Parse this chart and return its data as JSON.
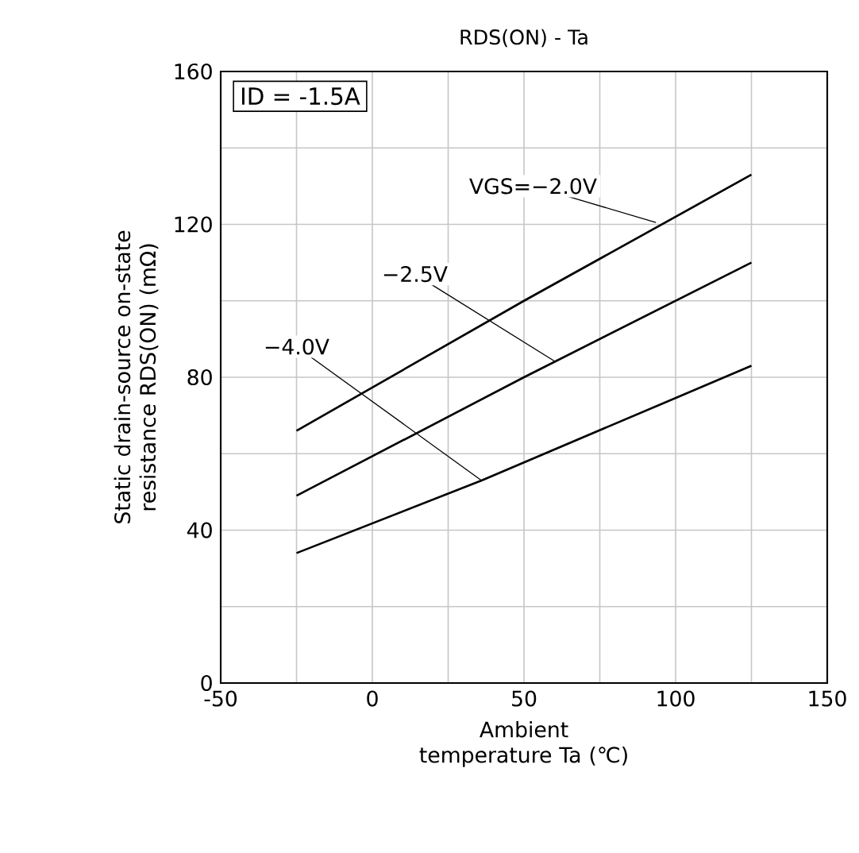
{
  "chart_data": {
    "type": "line",
    "title": "RDS(ON) - Ta",
    "xlabel": "Ambient temperature Ta (℃)",
    "ylabel": "Static drain-source on-state resistance RDS(ON) (mΩ)",
    "series": [
      {
        "color": "#000000",
        "x": [
          -25,
          50,
          125
        ],
        "values": [
          66,
          100,
          133
        ]
      },
      {
        "color": "#000000",
        "x": [
          -25,
          50,
          125
        ],
        "values": [
          49,
          80,
          110
        ]
      },
      {
        "color": "#000000",
        "x": [
          -25,
          36,
          125
        ],
        "values": [
          34,
          53,
          83
        ]
      }
    ],
    "annotations": [
      "ID = -1.5A",
      {
        "text": "VGS=−2.0V",
        "x": 93.5,
        "y": 120.5
      },
      {
        "text": "−2.5V",
        "x": 60.5,
        "y": 84
      },
      {
        "text": "−4.0V",
        "x": 36,
        "y": 53
      }
    ],
    "xlim": [
      -50,
      150
    ],
    "ylim": [
      0,
      160
    ],
    "xticks": [
      -50,
      {
        "value": -25,
        "label": null
      },
      0,
      {
        "value": 25,
        "label": null
      },
      50,
      {
        "value": 75,
        "label": null
      },
      100,
      {
        "value": 125,
        "label": null
      },
      150
    ],
    "yticks": [
      0,
      {
        "value": 20,
        "label": null
      },
      40,
      {
        "value": 60,
        "label": null
      },
      80,
      {
        "value": 100,
        "label": null
      },
      120,
      {
        "value": 140,
        "label": null
      },
      160
    ],
    "grid": true,
    "line_style": "solid",
    "marker": "none"
  }
}
